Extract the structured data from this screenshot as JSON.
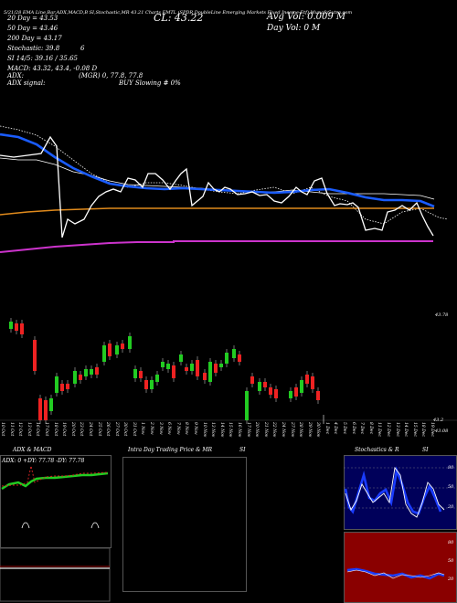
{
  "header": {
    "top_line": "5/21/28 EMA Line,Bar,ADX,MACD,B  SI,Stochastic,MR  43.21 Charts EMTL  (SPDR DoubleLine Emerging Markets Fixed Income Etf) MunafaSutra.com",
    "close_label": "CL: 43.22",
    "avg_vol": "Avg Vol: 0.009 M",
    "day_vol": "Day Vol: 0  M",
    "ema20": "20 Day = 43.53",
    "ema50": "50  Day = 43.46",
    "ema200": "200  Day = 43.17",
    "stochastic": "Stochastic: 39.8",
    "stoch_right": "6",
    "si": "SI 14/5: 39.16  / 35.65",
    "macd": "MACD: 43.32,  43.4,  -0.08  D",
    "adx": "ADX:",
    "adx_val": "(MGR) 0, 77.8, 77.8",
    "adx_signal": "ADX  signal:",
    "signal_text": "BUY Slowing # 0%"
  },
  "price_axis": {
    "top_right": "43.78",
    "bottom_right_1": "43.2",
    "bottom_right_2": "43.08"
  },
  "dates": [
    "10 Oct",
    "11 Oct",
    "12 Oct",
    "13 Oct",
    "16 Oct",
    "17 Oct",
    "18 Oct",
    "19 Oct",
    "20 Oct",
    "23 Oct",
    "24 Oct",
    "25 Oct",
    "26 Oct",
    "27 Oct",
    "30 Oct",
    "31 Oct",
    "1 Nov",
    "2 Nov",
    "3 Nov",
    "6 Nov",
    "7 Nov",
    "8 Nov",
    "9 Nov",
    "10 Nov",
    "13 Nov",
    "14 Nov",
    "15 Nov",
    "16 Nov",
    "17 Nov",
    "20 Nov",
    "21 Nov",
    "22 Nov",
    "24 Nov",
    "27 Nov",
    "28 Nov",
    "29 Nov",
    "30 Nov",
    "1 Dec",
    "4 Dec",
    "5 Dec",
    "6 Dec",
    "7 Dec",
    "8 Dec",
    "11 Dec",
    "12 Dec",
    "13 Dec",
    "14 Dec",
    "15 Dec",
    "18 Dec",
    "19 Dec"
  ],
  "panels": {
    "adx_title": "ADX  & MACD",
    "adx_readout": "ADX: 0    +DY: 77.78  -DY: 77.78",
    "intraday_title": "Intra  Day Trading Price  & MR",
    "intraday_si": "SI",
    "stoch_title": "Stochastics & R",
    "stoch_si": "SI",
    "stoch_ticks": [
      "80",
      "50",
      "20"
    ],
    "si_ticks": [
      "80",
      "50",
      "20"
    ]
  },
  "colors": {
    "ema_blue": "#1a5cff",
    "ema_orange": "#e08a1c",
    "ema_magenta": "#cc33cc",
    "up_candle": "#22cc22",
    "down_candle": "#ee2222",
    "adx_green": "#22cc22",
    "stoch_blue": "#1a3cff",
    "si_red": "#9b0000"
  }
}
